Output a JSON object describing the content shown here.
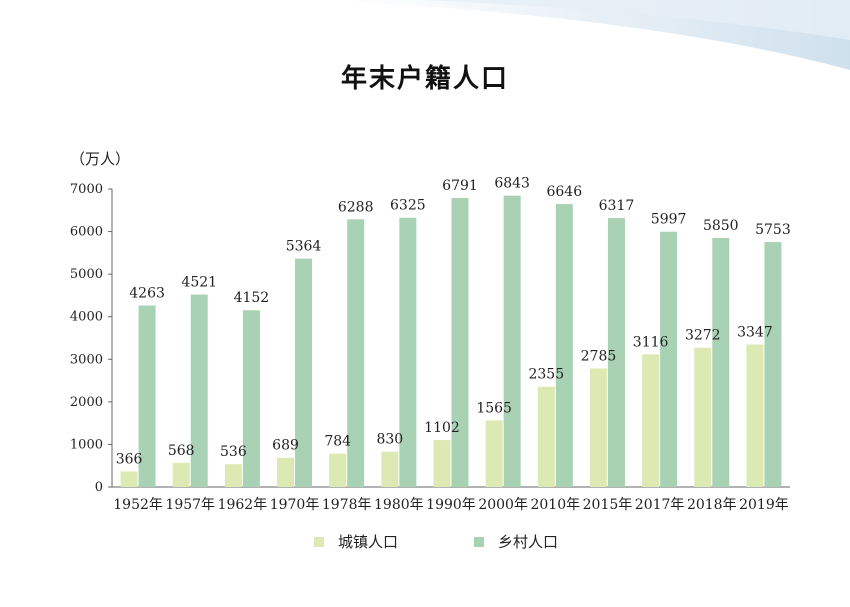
{
  "chart_data": {
    "type": "bar",
    "title": "年末户籍人口",
    "unit": "（万人）",
    "categories": [
      "1952年",
      "1957年",
      "1962年",
      "1970年",
      "1978年",
      "1980年",
      "1990年",
      "2000年",
      "2010年",
      "2015年",
      "2017年",
      "2018年",
      "2019年"
    ],
    "series": [
      {
        "name": "城镇人口",
        "color": "#dde9b3",
        "values": [
          366,
          568,
          536,
          689,
          784,
          830,
          1102,
          1565,
          2355,
          2785,
          3116,
          3272,
          3347
        ]
      },
      {
        "name": "乡村人口",
        "color": "#a9d2b4",
        "values": [
          4263,
          4521,
          4152,
          5364,
          6288,
          6325,
          6791,
          6843,
          6646,
          6317,
          5997,
          5850,
          5753
        ]
      }
    ],
    "ylim": [
      0,
      7000
    ],
    "yticks": [
      0,
      1000,
      2000,
      3000,
      4000,
      5000,
      6000,
      7000
    ],
    "grid": false,
    "legend_position": "bottom"
  }
}
